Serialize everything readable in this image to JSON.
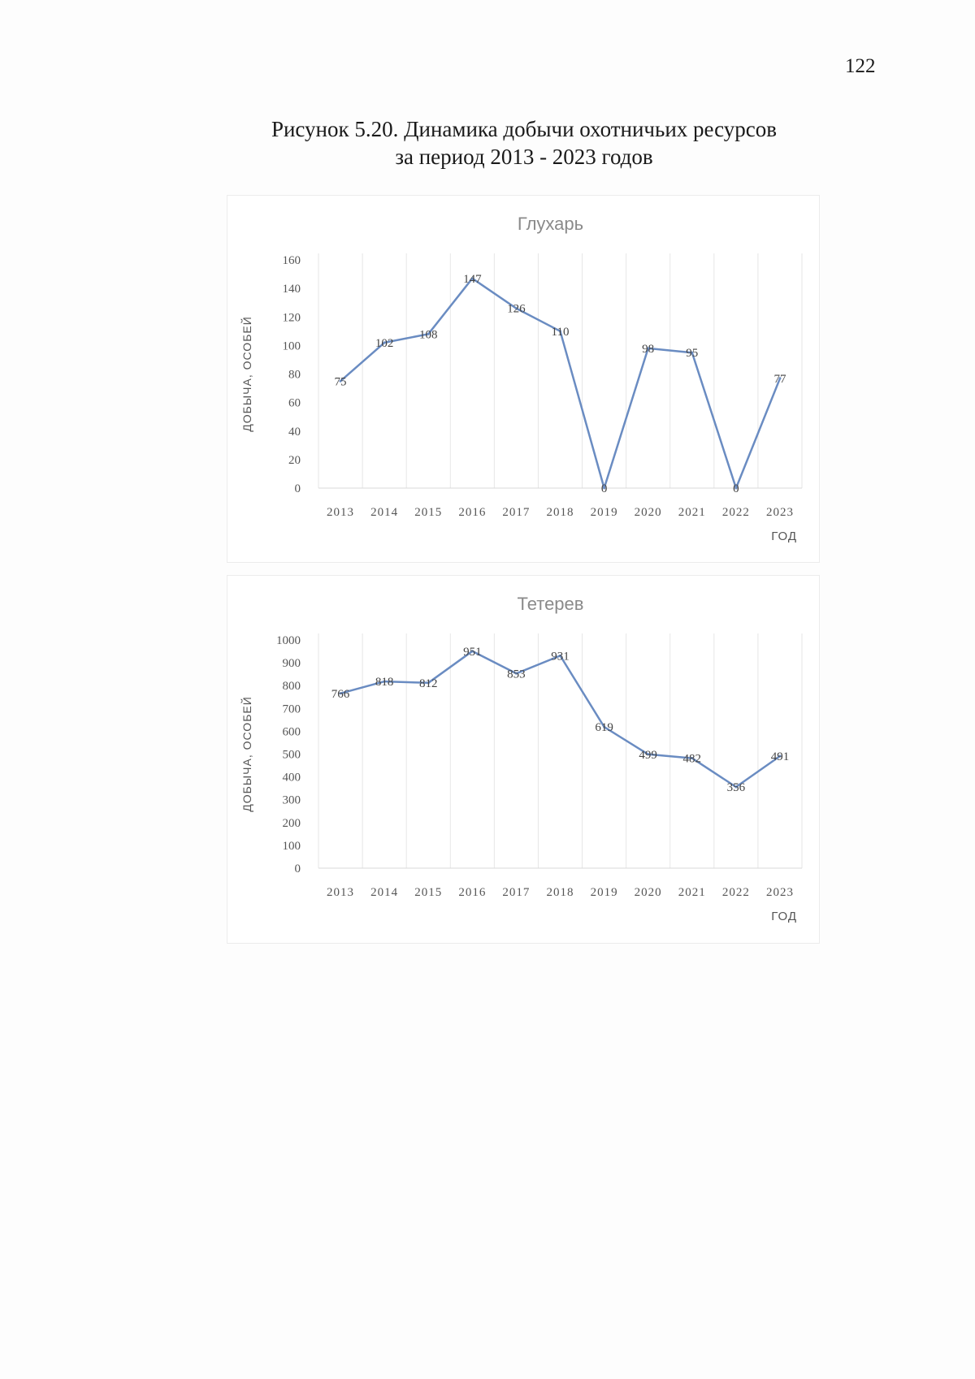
{
  "page_number": "122",
  "caption": {
    "line1": "Рисунок 5.20. Динамика добычи охотничьих ресурсов",
    "line2": "за период 2013 - 2023 годов"
  },
  "colors": {
    "series_line": "#6a8cc2",
    "grid": "#e6e6e6",
    "tick_text": "#555555",
    "title_text": "#8a8a8a"
  },
  "chart_data": [
    {
      "type": "line",
      "title": "Глухарь",
      "xlabel": "ГОД",
      "ylabel": "ДОБЫЧА, ОСОБЕЙ",
      "categories": [
        "2013",
        "2014",
        "2015",
        "2016",
        "2017",
        "2018",
        "2019",
        "2020",
        "2021",
        "2022",
        "2023"
      ],
      "values": [
        75,
        102,
        108,
        147,
        126,
        110,
        0,
        98,
        95,
        0,
        77
      ],
      "ylim": [
        0,
        160
      ],
      "yticks": [
        0,
        20,
        40,
        60,
        80,
        100,
        120,
        140,
        160
      ],
      "data_labels": true,
      "grid": "vertical"
    },
    {
      "type": "line",
      "title": "Тетерев",
      "xlabel": "ГОД",
      "ylabel": "ДОБЫЧА, ОСОБЕЙ",
      "categories": [
        "2013",
        "2014",
        "2015",
        "2016",
        "2017",
        "2018",
        "2019",
        "2020",
        "2021",
        "2022",
        "2023"
      ],
      "values": [
        766,
        818,
        812,
        951,
        853,
        931,
        619,
        499,
        482,
        356,
        491
      ],
      "ylim": [
        0,
        1000
      ],
      "yticks": [
        0,
        100,
        200,
        300,
        400,
        500,
        600,
        700,
        800,
        900,
        1000
      ],
      "data_labels": true,
      "grid": "vertical"
    }
  ]
}
